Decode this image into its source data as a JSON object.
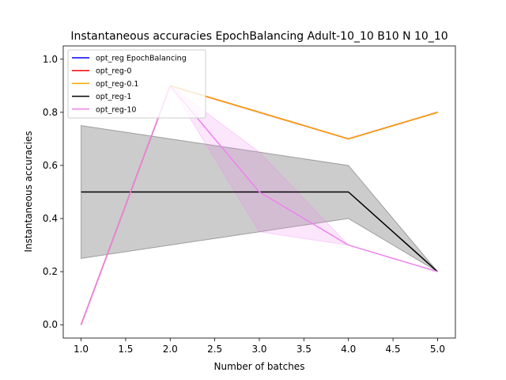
{
  "chart_data": {
    "type": "line",
    "title": "Instantaneous accuracies EpochBalancing Adult-10_10 B10 N 10_10",
    "xlabel": "Number of batches",
    "ylabel": "Instantaneous accuracies",
    "xlim": [
      0.8,
      5.2
    ],
    "ylim": [
      -0.05,
      1.05
    ],
    "xticks": [
      "1.0",
      "1.5",
      "2.0",
      "2.5",
      "3.0",
      "3.5",
      "4.0",
      "4.5",
      "5.0"
    ],
    "yticks": [
      "0.0",
      "0.2",
      "0.4",
      "0.6",
      "0.8",
      "1.0"
    ],
    "x": [
      1,
      2,
      3,
      4,
      5
    ],
    "legend_position": "top-left",
    "series": [
      {
        "name": "opt_reg EpochBalancing",
        "color": "#0000ff",
        "values": [
          0.0,
          0.9,
          0.8,
          0.7,
          0.8
        ],
        "lower": [
          0.0,
          0.9,
          0.8,
          0.7,
          0.8
        ],
        "upper": [
          0.0,
          0.9,
          0.8,
          0.7,
          0.8
        ]
      },
      {
        "name": "opt_reg-0",
        "color": "#ff0000",
        "values": [
          0.0,
          0.9,
          0.8,
          0.7,
          0.8
        ],
        "lower": [
          0.0,
          0.9,
          0.8,
          0.7,
          0.8
        ],
        "upper": [
          0.0,
          0.9,
          0.8,
          0.7,
          0.8
        ]
      },
      {
        "name": "opt_reg-0.1",
        "color": "#ffa500",
        "values": [
          0.0,
          0.9,
          0.8,
          0.7,
          0.8
        ],
        "lower": [
          0.0,
          0.9,
          0.8,
          0.7,
          0.8
        ],
        "upper": [
          0.0,
          0.9,
          0.8,
          0.7,
          0.8
        ]
      },
      {
        "name": "opt_reg-1",
        "color": "#000000",
        "values": [
          0.5,
          0.5,
          0.5,
          0.5,
          0.2
        ],
        "lower": [
          0.25,
          0.3,
          0.35,
          0.4,
          0.2
        ],
        "upper": [
          0.75,
          0.7,
          0.65,
          0.6,
          0.2
        ]
      },
      {
        "name": "opt_reg-10",
        "color": "#ee82ee",
        "values": [
          0.0,
          0.9,
          0.5,
          0.3,
          0.2
        ],
        "lower": [
          0.0,
          0.9,
          0.35,
          0.3,
          0.2
        ],
        "upper": [
          0.0,
          0.9,
          0.65,
          0.3,
          0.2
        ]
      }
    ]
  }
}
